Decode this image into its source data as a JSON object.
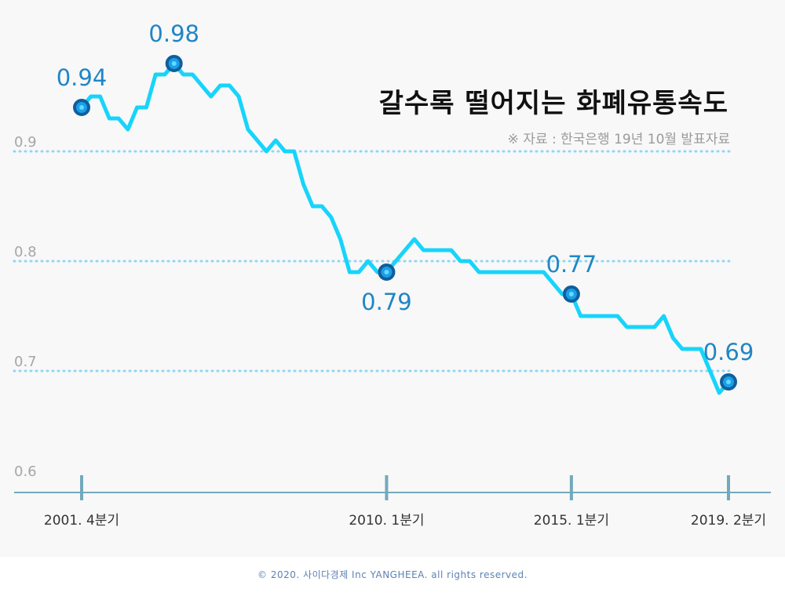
{
  "title": "갈수록 떨어지는 화폐유통속도",
  "source": "※ 자료 : 한국은행 19년 10월 발표자료",
  "footer": "© 2020. 사이다경제 Inc YANGHEEA. all rights reserved.",
  "colors": {
    "line": "#17d4fb",
    "marker_fill": "#1c9ee8",
    "marker_stroke": "#0f5f9c",
    "gridline": "#8fd6f6",
    "axis": "#73a9bd",
    "label": "#1f86c6",
    "y_tick": "#a6a6a6",
    "x_tick": "#333333"
  },
  "chart_data": {
    "type": "line",
    "title": "갈수록 떨어지는 화폐유통속도",
    "ylim": [
      0.6,
      1.0
    ],
    "y_ticks": [
      "0.6",
      "0.7",
      "0.8",
      "0.9"
    ],
    "y_gridlines": [
      0.7,
      0.8,
      0.9
    ],
    "x_ticks": [
      {
        "label": "2001. 4분기",
        "index": 0
      },
      {
        "label": "2010. 1분기",
        "index": 33
      },
      {
        "label": "2015. 1분기",
        "index": 53
      },
      {
        "label": "2019. 2분기",
        "index": 70
      }
    ],
    "series": [
      {
        "values": [
          0.94,
          0.95,
          0.95,
          0.93,
          0.93,
          0.92,
          0.94,
          0.94,
          0.97,
          0.97,
          0.98,
          0.97,
          0.97,
          0.96,
          0.95,
          0.96,
          0.96,
          0.95,
          0.92,
          0.91,
          0.9,
          0.91,
          0.9,
          0.9,
          0.87,
          0.85,
          0.85,
          0.84,
          0.82,
          0.79,
          0.79,
          0.8,
          0.79,
          0.79,
          0.8,
          0.81,
          0.82,
          0.81,
          0.81,
          0.81,
          0.81,
          0.8,
          0.8,
          0.79,
          0.79,
          0.79,
          0.79,
          0.79,
          0.79,
          0.79,
          0.79,
          0.78,
          0.77,
          0.77,
          0.75,
          0.75,
          0.75,
          0.75,
          0.75,
          0.74,
          0.74,
          0.74,
          0.74,
          0.75,
          0.73,
          0.72,
          0.72,
          0.72,
          0.7,
          0.68,
          0.69
        ]
      }
    ],
    "annotations": [
      {
        "label": "0.94",
        "index": 0,
        "position": "above"
      },
      {
        "label": "0.98",
        "index": 10,
        "position": "above"
      },
      {
        "label": "0.79",
        "index": 33,
        "position": "below"
      },
      {
        "label": "0.77",
        "index": 53,
        "position": "above"
      },
      {
        "label": "0.69",
        "index": 70,
        "position": "above"
      }
    ]
  }
}
